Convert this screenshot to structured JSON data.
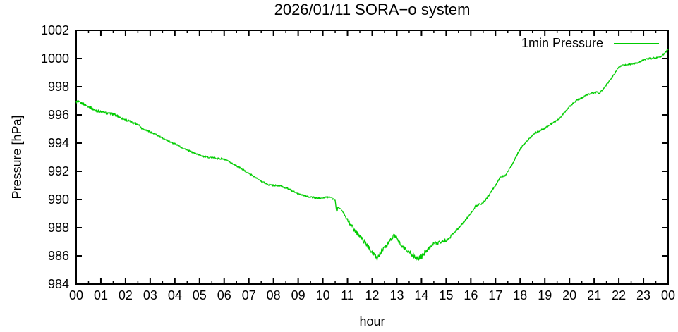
{
  "colors": {
    "line": "#00cc00",
    "foreground": "#000000",
    "background": "#ffffff"
  },
  "legend": {
    "label": "1min Pressure"
  },
  "chart_data": {
    "type": "line",
    "title": "2026/01/11 SORA−o system",
    "xlabel": "hour",
    "ylabel": "Pressure [hPa]",
    "xlim": [
      0,
      24
    ],
    "ylim": [
      984,
      1002
    ],
    "x_tick_labels": [
      "00",
      "01",
      "02",
      "03",
      "04",
      "05",
      "06",
      "07",
      "08",
      "09",
      "10",
      "11",
      "12",
      "13",
      "14",
      "15",
      "16",
      "17",
      "18",
      "19",
      "20",
      "21",
      "22",
      "23",
      "00"
    ],
    "x_minor_tick_interval_hours": 0.5,
    "y_tick_labels": [
      "984",
      "986",
      "988",
      "990",
      "992",
      "994",
      "996",
      "998",
      "1000",
      "1002"
    ],
    "y_tick_values": [
      984,
      986,
      988,
      990,
      992,
      994,
      996,
      998,
      1000,
      1002
    ],
    "grid": false,
    "legend_position": "top-right",
    "series": [
      {
        "name": "1min Pressure",
        "color": "#00cc00",
        "sampling": "1 minute",
        "points_hour_hpa": [
          [
            0.0,
            996.95
          ],
          [
            0.25,
            996.8
          ],
          [
            0.5,
            996.6
          ],
          [
            0.75,
            996.35
          ],
          [
            1.0,
            996.2
          ],
          [
            1.3,
            996.1
          ],
          [
            1.5,
            996.05
          ],
          [
            1.75,
            995.85
          ],
          [
            2.0,
            995.65
          ],
          [
            2.3,
            995.45
          ],
          [
            2.55,
            995.3
          ],
          [
            2.65,
            995.05
          ],
          [
            3.0,
            994.8
          ],
          [
            3.5,
            994.35
          ],
          [
            4.0,
            993.95
          ],
          [
            4.5,
            993.5
          ],
          [
            5.0,
            993.15
          ],
          [
            5.3,
            993.0
          ],
          [
            5.6,
            992.95
          ],
          [
            6.0,
            992.85
          ],
          [
            6.5,
            992.4
          ],
          [
            7.0,
            991.85
          ],
          [
            7.5,
            991.3
          ],
          [
            7.8,
            991.05
          ],
          [
            8.0,
            991.0
          ],
          [
            8.3,
            990.95
          ],
          [
            8.6,
            990.75
          ],
          [
            9.0,
            990.4
          ],
          [
            9.4,
            990.2
          ],
          [
            9.8,
            990.1
          ],
          [
            10.1,
            990.15
          ],
          [
            10.3,
            990.2
          ],
          [
            10.5,
            989.95
          ],
          [
            10.56,
            989.1
          ],
          [
            10.62,
            989.5
          ],
          [
            10.8,
            989.15
          ],
          [
            11.0,
            988.55
          ],
          [
            11.3,
            987.8
          ],
          [
            11.6,
            987.2
          ],
          [
            11.9,
            986.5
          ],
          [
            12.05,
            986.15
          ],
          [
            12.2,
            985.8
          ],
          [
            12.35,
            986.3
          ],
          [
            12.55,
            986.65
          ],
          [
            12.75,
            987.15
          ],
          [
            12.9,
            987.45
          ],
          [
            13.05,
            987.1
          ],
          [
            13.2,
            986.7
          ],
          [
            13.4,
            986.4
          ],
          [
            13.6,
            986.15
          ],
          [
            13.85,
            985.75
          ],
          [
            14.0,
            985.95
          ],
          [
            14.25,
            986.5
          ],
          [
            14.5,
            986.85
          ],
          [
            14.8,
            987.0
          ],
          [
            15.0,
            987.1
          ],
          [
            15.3,
            987.6
          ],
          [
            15.6,
            988.15
          ],
          [
            16.0,
            989.0
          ],
          [
            16.2,
            989.55
          ],
          [
            16.5,
            989.75
          ],
          [
            16.75,
            990.35
          ],
          [
            17.0,
            991.0
          ],
          [
            17.2,
            991.6
          ],
          [
            17.4,
            991.7
          ],
          [
            17.7,
            992.55
          ],
          [
            18.0,
            993.6
          ],
          [
            18.3,
            994.2
          ],
          [
            18.6,
            994.7
          ],
          [
            19.0,
            995.05
          ],
          [
            19.3,
            995.4
          ],
          [
            19.6,
            995.75
          ],
          [
            20.0,
            996.6
          ],
          [
            20.3,
            997.05
          ],
          [
            20.6,
            997.3
          ],
          [
            20.8,
            997.5
          ],
          [
            21.0,
            997.55
          ],
          [
            21.1,
            997.65
          ],
          [
            21.2,
            997.5
          ],
          [
            21.4,
            997.9
          ],
          [
            21.7,
            998.6
          ],
          [
            22.0,
            999.4
          ],
          [
            22.2,
            999.55
          ],
          [
            22.5,
            999.6
          ],
          [
            22.8,
            999.7
          ],
          [
            23.0,
            999.9
          ],
          [
            23.2,
            1000.0
          ],
          [
            23.5,
            1000.05
          ],
          [
            23.75,
            1000.2
          ],
          [
            23.85,
            1000.35
          ],
          [
            23.95,
            1000.55
          ],
          [
            24.0,
            1000.65
          ]
        ]
      }
    ]
  }
}
